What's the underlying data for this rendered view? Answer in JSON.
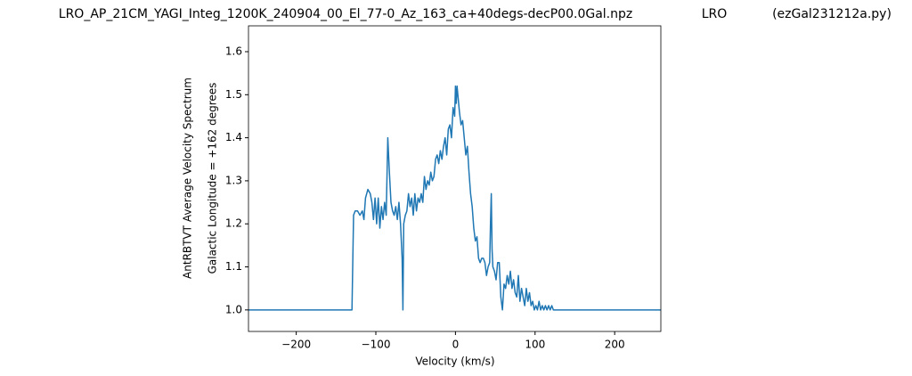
{
  "chart_data": {
    "type": "line",
    "title": "LRO_AP_21CM_YAGI_Integ_1200K_240904_00_El_77-0_Az_163_ca+40degs-decP00.0Gal.npz",
    "title_center": "LRO",
    "title_right": "(ezGal231212a.py)",
    "xlabel": "Velocity (km/s)",
    "ylabel": [
      "AntRBTVT Average Velocity Spectrum",
      "Galactic Longitude = +162 degrees"
    ],
    "xlim": [
      -260,
      258
    ],
    "ylim": [
      0.95,
      1.66
    ],
    "xticks": [
      {
        "value": -200,
        "label": "−200"
      },
      {
        "value": -100,
        "label": "−100"
      },
      0,
      100,
      200
    ],
    "yticks": [
      {
        "value": 1,
        "label": "1.0"
      },
      1.1,
      1.2,
      1.3,
      1.4,
      1.5,
      1.6
    ],
    "series": [
      {
        "color": "#1f77b4",
        "x": [
          -260,
          -130,
          -128,
          -126,
          -123,
          -120,
          -117,
          -115,
          -113,
          -110,
          -107,
          -105,
          -103,
          -101,
          -99,
          -97,
          -95,
          -93,
          -91,
          -89,
          -87,
          -85,
          -83,
          -81,
          -79,
          -77,
          -75,
          -73,
          -71,
          -69,
          -67,
          -66,
          -65,
          -63,
          -61,
          -59,
          -57,
          -55,
          -53,
          -51,
          -49,
          -47,
          -45,
          -43,
          -41,
          -39,
          -37,
          -35,
          -33,
          -31,
          -29,
          -27,
          -25,
          -23,
          -21,
          -19,
          -17,
          -15,
          -13,
          -11,
          -9,
          -7,
          -5,
          -3,
          -1,
          0,
          1,
          2,
          3,
          5,
          7,
          9,
          11,
          13,
          15,
          17,
          19,
          21,
          23,
          25,
          27,
          29,
          31,
          33,
          35,
          37,
          39,
          41,
          43,
          44,
          45,
          46,
          47,
          49,
          51,
          53,
          55,
          57,
          59,
          61,
          63,
          65,
          67,
          69,
          71,
          73,
          75,
          77,
          79,
          81,
          83,
          85,
          87,
          89,
          91,
          93,
          95,
          97,
          99,
          101,
          103,
          105,
          107,
          109,
          111,
          113,
          115,
          117,
          119,
          121,
          123,
          125,
          258
        ],
        "values": [
          1.0,
          1.0,
          1.22,
          1.23,
          1.23,
          1.22,
          1.23,
          1.21,
          1.26,
          1.28,
          1.27,
          1.25,
          1.21,
          1.26,
          1.2,
          1.26,
          1.19,
          1.24,
          1.21,
          1.25,
          1.22,
          1.4,
          1.32,
          1.25,
          1.23,
          1.22,
          1.24,
          1.21,
          1.25,
          1.2,
          1.12,
          1.0,
          1.2,
          1.22,
          1.23,
          1.27,
          1.24,
          1.26,
          1.22,
          1.27,
          1.23,
          1.26,
          1.25,
          1.27,
          1.25,
          1.31,
          1.28,
          1.3,
          1.29,
          1.32,
          1.3,
          1.31,
          1.35,
          1.36,
          1.34,
          1.37,
          1.35,
          1.38,
          1.4,
          1.36,
          1.42,
          1.43,
          1.4,
          1.47,
          1.45,
          1.52,
          1.48,
          1.52,
          1.5,
          1.46,
          1.43,
          1.44,
          1.4,
          1.36,
          1.38,
          1.32,
          1.27,
          1.24,
          1.19,
          1.16,
          1.17,
          1.12,
          1.11,
          1.12,
          1.12,
          1.11,
          1.08,
          1.1,
          1.11,
          1.2,
          1.27,
          1.14,
          1.1,
          1.09,
          1.07,
          1.11,
          1.11,
          1.03,
          1.0,
          1.06,
          1.05,
          1.08,
          1.06,
          1.09,
          1.05,
          1.07,
          1.04,
          1.03,
          1.08,
          1.02,
          1.05,
          1.03,
          1.01,
          1.05,
          1.02,
          1.04,
          1.01,
          1.02,
          1.0,
          1.01,
          1.0,
          1.02,
          1.0,
          1.01,
          1.0,
          1.01,
          1.0,
          1.01,
          1.0,
          1.01,
          1.0,
          1.0,
          1.0
        ]
      }
    ]
  }
}
